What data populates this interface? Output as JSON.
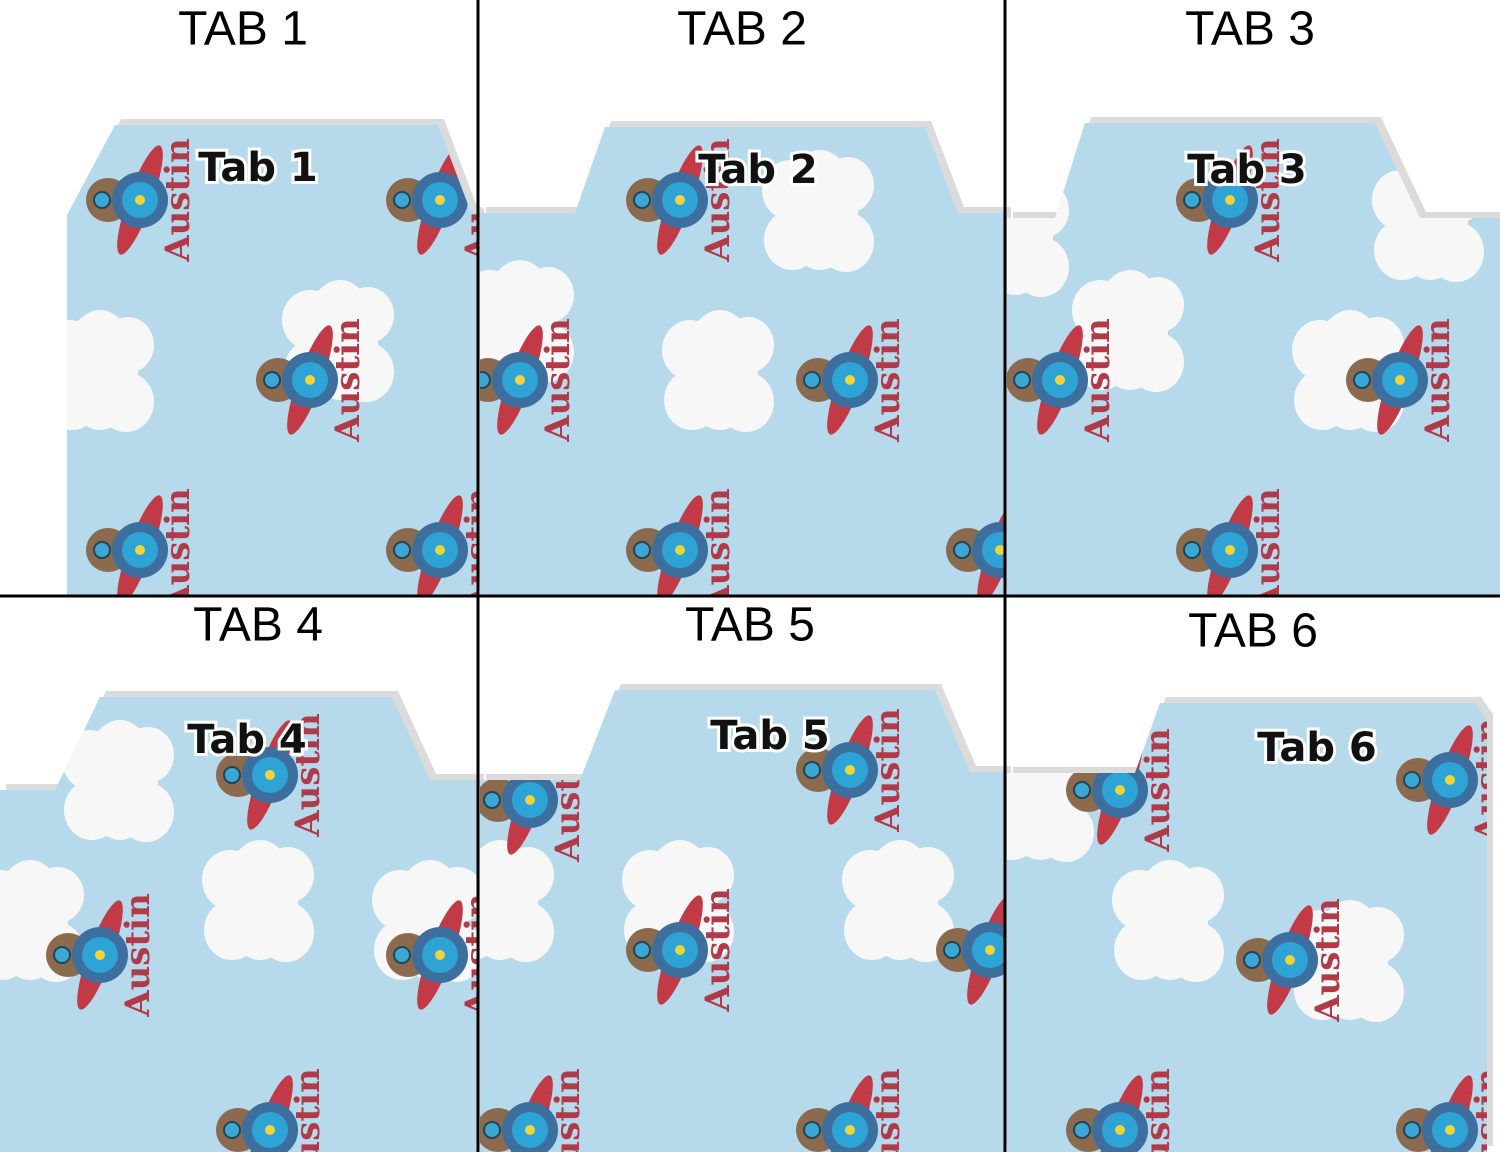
{
  "pattern_name": "Austin",
  "panels": [
    {
      "heading": "TAB 1",
      "tab_label": "Tab 1"
    },
    {
      "heading": "TAB 2",
      "tab_label": "Tab 2"
    },
    {
      "heading": "TAB 3",
      "tab_label": "Tab 3"
    },
    {
      "heading": "TAB 4",
      "tab_label": "Tab 4"
    },
    {
      "heading": "TAB 5",
      "tab_label": "Tab 5"
    },
    {
      "heading": "TAB 6",
      "tab_label": "Tab 6"
    }
  ]
}
